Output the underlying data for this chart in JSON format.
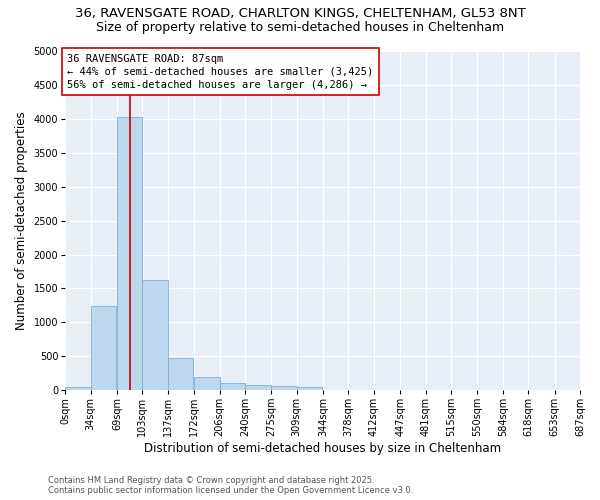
{
  "title_line1": "36, RAVENSGATE ROAD, CHARLTON KINGS, CHELTENHAM, GL53 8NT",
  "title_line2": "Size of property relative to semi-detached houses in Cheltenham",
  "xlabel": "Distribution of semi-detached houses by size in Cheltenham",
  "ylabel": "Number of semi-detached properties",
  "property_size": 87,
  "property_label": "36 RAVENSGATE ROAD: 87sqm",
  "pct_smaller": 44,
  "pct_larger": 56,
  "count_smaller": 3425,
  "count_larger": 4286,
  "bins": [
    0,
    34,
    69,
    103,
    137,
    172,
    206,
    240,
    275,
    309,
    344,
    378,
    412,
    447,
    481,
    515,
    550,
    584,
    618,
    653,
    687
  ],
  "bin_labels": [
    "0sqm",
    "34sqm",
    "69sqm",
    "103sqm",
    "137sqm",
    "172sqm",
    "206sqm",
    "240sqm",
    "275sqm",
    "309sqm",
    "344sqm",
    "378sqm",
    "412sqm",
    "447sqm",
    "481sqm",
    "515sqm",
    "550sqm",
    "584sqm",
    "618sqm",
    "653sqm",
    "687sqm"
  ],
  "bar_values": [
    40,
    1240,
    4030,
    1630,
    480,
    195,
    110,
    70,
    55,
    45,
    0,
    0,
    0,
    0,
    0,
    0,
    0,
    0,
    0,
    0
  ],
  "bar_color": "#BDD7EE",
  "bar_edge_color": "#7EB0D9",
  "redline_color": "#CC0000",
  "annotation_box_color": "#CC0000",
  "background_color": "#E8EEF8",
  "grid_color": "#FFFFFF",
  "ylim": [
    0,
    5000
  ],
  "yticks": [
    0,
    500,
    1000,
    1500,
    2000,
    2500,
    3000,
    3500,
    4000,
    4500,
    5000
  ],
  "footer_line1": "Contains HM Land Registry data © Crown copyright and database right 2025.",
  "footer_line2": "Contains public sector information licensed under the Open Government Licence v3.0.",
  "title_fontsize": 9.5,
  "subtitle_fontsize": 9,
  "axis_label_fontsize": 8.5,
  "tick_fontsize": 7,
  "annotation_fontsize": 7.5,
  "footer_fontsize": 6
}
